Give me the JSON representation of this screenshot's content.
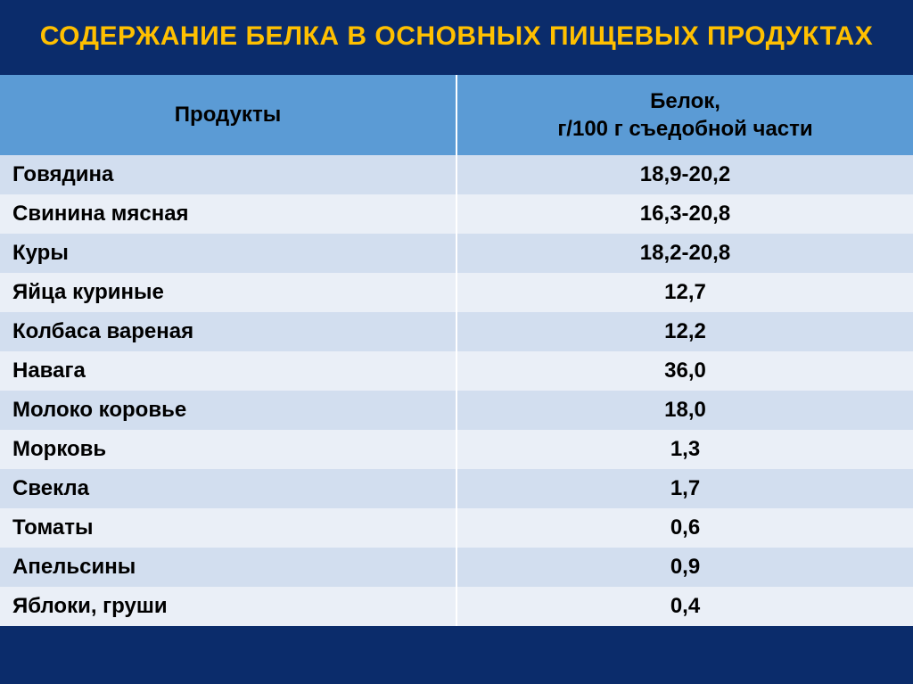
{
  "slide": {
    "background_color": "#0b2c6b",
    "title": "СОДЕРЖАНИЕ БЕЛКА В ОСНОВНЫХ ПИЩЕВЫХ ПРОДУКТАХ",
    "title_color": "#ffc000",
    "title_fontsize": 30,
    "footer_strip_color": "#0b2c6b"
  },
  "table": {
    "header_bg": "#5b9bd5",
    "header_text_color": "#000000",
    "row_odd_bg": "#d2deef",
    "row_even_bg": "#eaeff7",
    "cell_text_color": "#000000",
    "border_color": "#ffffff",
    "col_widths": [
      "50%",
      "50%"
    ],
    "columns": [
      {
        "label": "Продукты",
        "align": "center"
      },
      {
        "label": "Белок,\nг/100 г съедобной части",
        "align": "center"
      }
    ],
    "rows": [
      {
        "product": "Говядина",
        "value": "18,9-20,2"
      },
      {
        "product": "Свинина мясная",
        "value": "16,3-20,8"
      },
      {
        "product": "Куры",
        "value": "18,2-20,8"
      },
      {
        "product": "Яйца куриные",
        "value": "12,7"
      },
      {
        "product": "Колбаса вареная",
        "value": "12,2"
      },
      {
        "product": "Навага",
        "value": "36,0"
      },
      {
        "product": "Молоко коровье",
        "value": "18,0"
      },
      {
        "product": "Морковь",
        "value": "1,3"
      },
      {
        "product": "Свекла",
        "value": "1,7"
      },
      {
        "product": "Томаты",
        "value": "0,6"
      },
      {
        "product": "Апельсины",
        "value": "0,9"
      },
      {
        "product": "Яблоки, груши",
        "value": "0,4"
      }
    ]
  }
}
